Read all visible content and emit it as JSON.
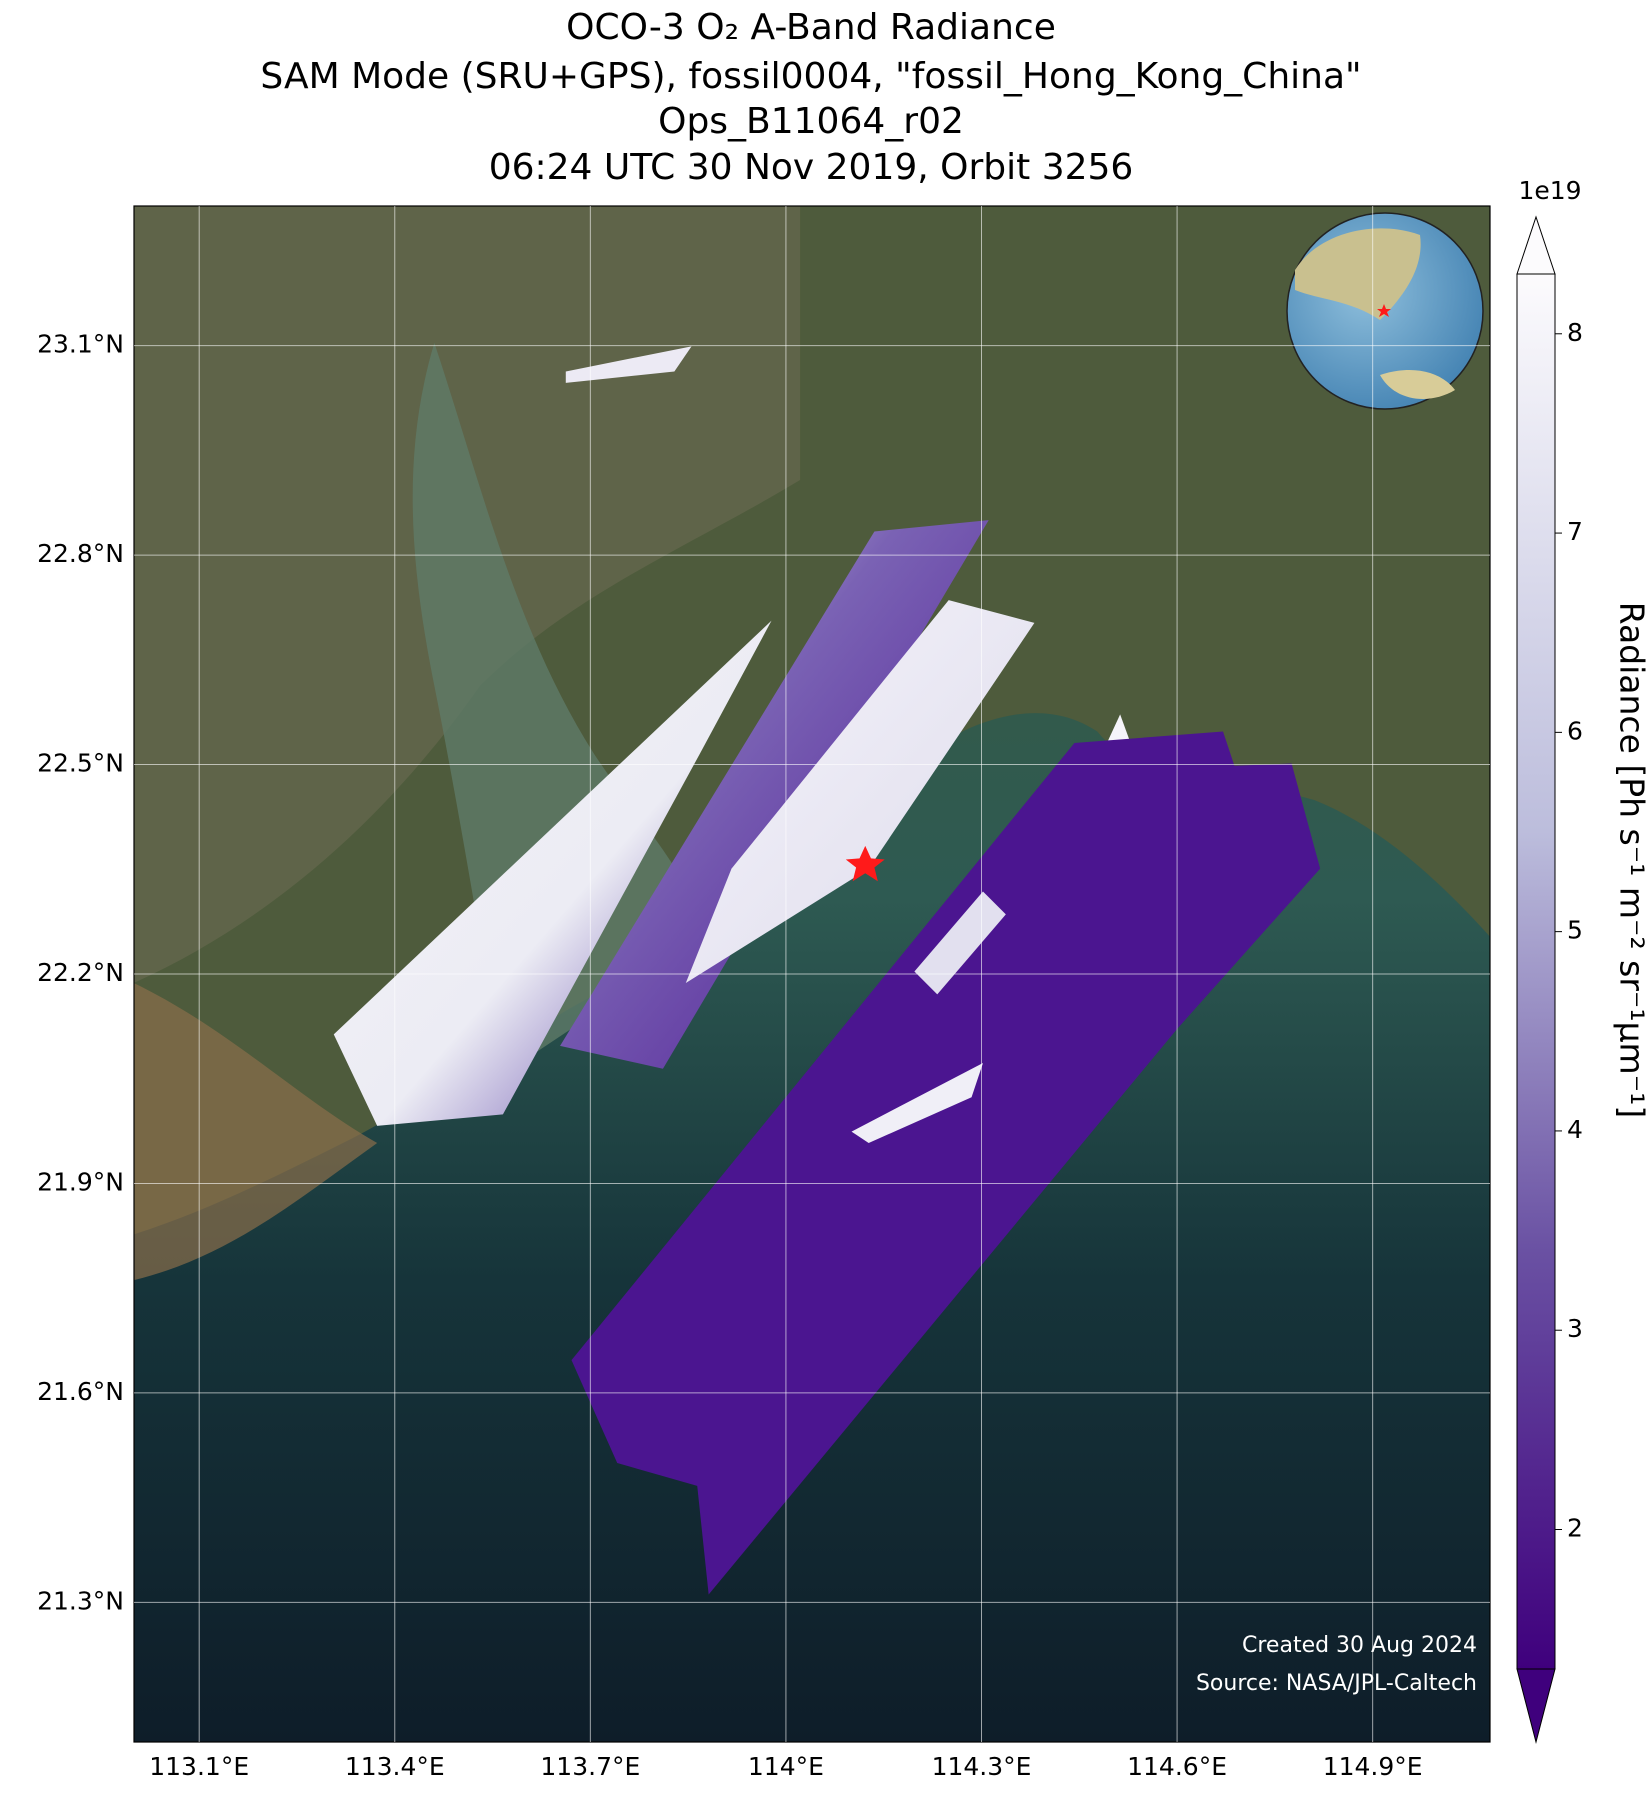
{
  "chart_data": {
    "type": "map",
    "title": [
      "OCO-3 O₂ A-Band Radiance",
      "SAM Mode (SRU+GPS), fossil0004, \"fossil_Hong_Kong_China\"",
      "Ops_B11064_r02",
      "06:24 UTC 30 Nov 2019, Orbit 3256"
    ],
    "xlim": [
      113.0,
      115.08
    ],
    "ylim": [
      21.1,
      23.3
    ],
    "xticks": [
      {
        "value": 113.1,
        "label": "113.1°E"
      },
      {
        "value": 113.4,
        "label": "113.4°E"
      },
      {
        "value": 113.7,
        "label": "113.7°E"
      },
      {
        "value": 114,
        "label": "114°E"
      },
      {
        "value": 114.3,
        "label": "114.3°E"
      },
      {
        "value": 114.6,
        "label": "114.6°E"
      },
      {
        "value": 114.9,
        "label": "114.9°E"
      }
    ],
    "yticks": [
      {
        "value": 21.3,
        "label": "21.3°N"
      },
      {
        "value": 21.6,
        "label": "21.6°N"
      },
      {
        "value": 21.9,
        "label": "21.9°N"
      },
      {
        "value": 22.2,
        "label": "22.2°N"
      },
      {
        "value": 22.5,
        "label": "22.5°N"
      },
      {
        "value": 22.8,
        "label": "22.8°N"
      },
      {
        "value": 23.1,
        "label": "23.1°N"
      }
    ],
    "grid": true,
    "colorbar": {
      "label": "Radiance [Ph s⁻¹ m⁻² sr⁻¹μm⁻¹]",
      "offset": "1e19",
      "clim": [
        1.3,
        8.3
      ],
      "ticks": [
        2,
        3,
        4,
        5,
        6,
        7,
        8
      ],
      "colors": [
        "#3f007d",
        "#fcfbfd"
      ]
    },
    "annotations": [
      "Created 30 Aug 2024",
      "Source: NASA/JPL-Caltech"
    ]
  }
}
